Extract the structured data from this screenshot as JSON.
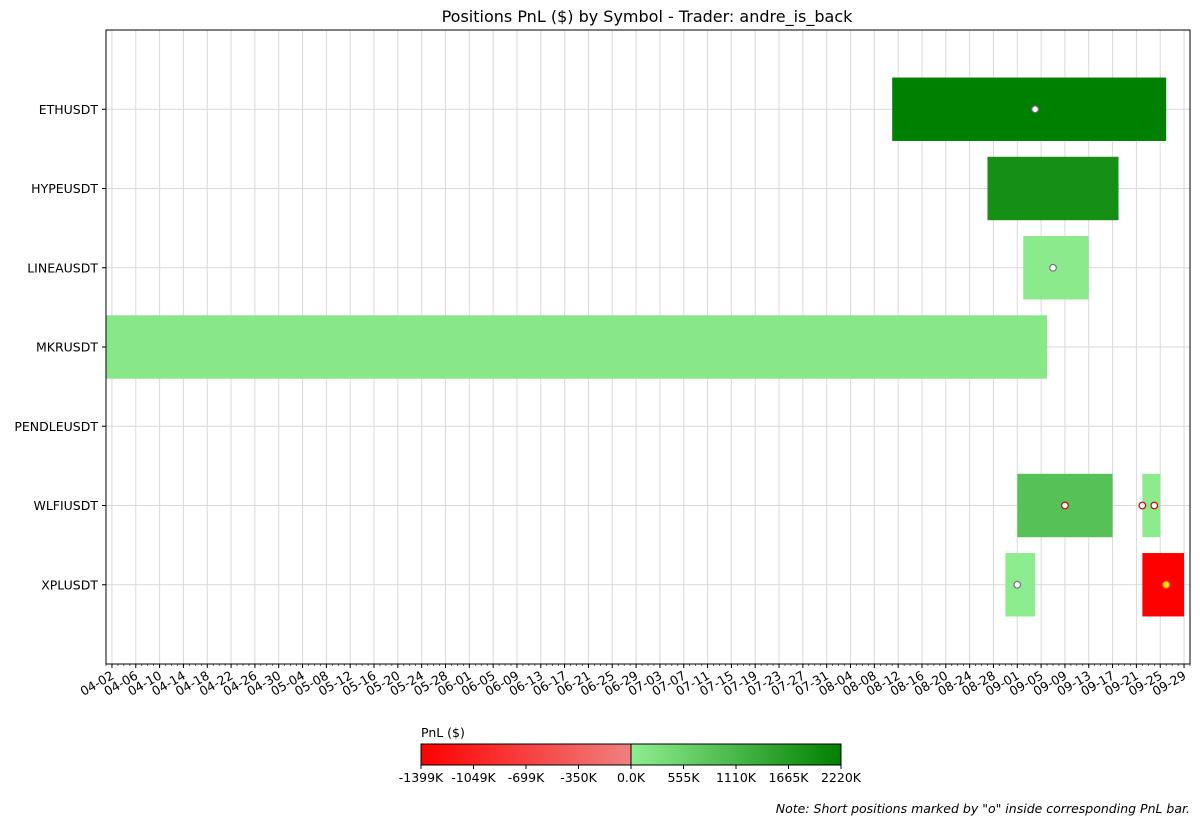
{
  "chart_data": {
    "type": "gantt",
    "title": "Positions PnL ($) by Symbol - Trader: andre_is_back",
    "xlabel": "",
    "ylabel": "",
    "x_tick_labels": [
      "04-02",
      "04-06",
      "04-10",
      "04-14",
      "04-18",
      "04-22",
      "04-26",
      "04-30",
      "05-04",
      "05-08",
      "05-12",
      "05-16",
      "05-20",
      "05-24",
      "05-28",
      "06-01",
      "06-05",
      "06-09",
      "06-13",
      "06-17",
      "06-21",
      "06-25",
      "06-29",
      "07-03",
      "07-07",
      "07-11",
      "07-15",
      "07-19",
      "07-23",
      "07-27",
      "07-31",
      "08-04",
      "08-08",
      "08-12",
      "08-16",
      "08-20",
      "08-24",
      "08-28",
      "09-01",
      "09-05",
      "09-09",
      "09-13",
      "09-17",
      "09-21",
      "09-25",
      "09-29"
    ],
    "x_range": [
      "2025-04-01",
      "2025-09-30"
    ],
    "grid": true,
    "categories": [
      "ETHUSDT",
      "HYPEUSDT",
      "LINEAUSDT",
      "MKRUSDT",
      "PENDLEUSDT",
      "WLFIUSDT",
      "XPLUSDT"
    ],
    "positions": [
      {
        "symbol": "ETHUSDT",
        "start": "2025-08-11",
        "end": "2025-09-26",
        "pnl": 2220000,
        "short_marker": "2025-09-04"
      },
      {
        "symbol": "HYPEUSDT",
        "start": "2025-08-27",
        "end": "2025-09-18",
        "pnl": 1900000,
        "short_marker": null
      },
      {
        "symbol": "LINEAUSDT",
        "start": "2025-09-02",
        "end": "2025-09-13",
        "pnl": 80000,
        "short_marker": "2025-09-07"
      },
      {
        "symbol": "MKRUSDT",
        "start": "2025-04-01",
        "end": "2025-09-06",
        "pnl": 120000,
        "short_marker": null
      },
      {
        "symbol": "WLFIUSDT",
        "start": "2025-09-01",
        "end": "2025-09-17",
        "pnl": 900000,
        "short_marker": "2025-09-09"
      },
      {
        "symbol": "WLFIUSDT",
        "start": "2025-09-22",
        "end": "2025-09-25",
        "pnl": 60000,
        "short_marker": "2025-09-22"
      },
      {
        "symbol": "WLFIUSDT",
        "start": "2025-09-22",
        "end": "2025-09-25",
        "pnl": 60000,
        "short_marker": "2025-09-24"
      },
      {
        "symbol": "XPLUSDT",
        "start": "2025-08-30",
        "end": "2025-09-04",
        "pnl": 50000,
        "short_marker": "2025-09-01"
      },
      {
        "symbol": "XPLUSDT",
        "start": "2025-09-22",
        "end": "2025-09-29",
        "pnl": -1399000,
        "short_marker": "2025-09-26"
      }
    ],
    "colorbar": {
      "label": "PnL ($)",
      "ticks": [
        "-1399K",
        "-1049K",
        "-699K",
        "-350K",
        "0.0K",
        "555K",
        "1110K",
        "1665K",
        "2220K"
      ],
      "min": -1399000,
      "max": 2220000,
      "negative_colors": [
        "#ff0000",
        "#f08080"
      ],
      "positive_colors": [
        "#90ee90",
        "#008000"
      ]
    }
  },
  "footnote": "Note: Short positions marked by \"o\" inside corresponding PnL bar."
}
